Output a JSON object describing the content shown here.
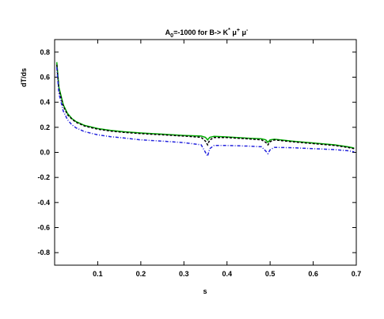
{
  "chart_data": {
    "type": "line",
    "title": {
      "A": "A",
      "A_sub": "0",
      "mid": "=-1000 for  B-> K",
      "K_sup": "*",
      "mu": " μ",
      "mu1_sup": "+",
      "mu2": " μ",
      "mu2_sup": "-"
    },
    "xlabel": "s",
    "ylabel": "dT/ds",
    "xlim": [
      0.0,
      0.7
    ],
    "ylim": [
      -0.9,
      0.9
    ],
    "grid": false,
    "x_ticks": [
      0.1,
      0.2,
      0.3,
      0.4,
      0.5,
      0.6,
      0.7
    ],
    "x_tick_labels": [
      "0.1",
      "0.2",
      "0.3",
      "0.4",
      "0.5",
      "0.6",
      "0.7"
    ],
    "y_ticks": [
      -0.8,
      -0.6,
      -0.4,
      -0.2,
      0.0,
      0.2,
      0.4,
      0.6,
      0.8
    ],
    "y_tick_labels": [
      "-0.8",
      "-0.6",
      "-0.4",
      "-0.2",
      "0.0",
      "0.2",
      "0.4",
      "0.6",
      "0.8"
    ],
    "series": [
      {
        "color": "#00aa00",
        "dash": "solid",
        "x": [
          0.005,
          0.01,
          0.02,
          0.03,
          0.04,
          0.05,
          0.07,
          0.1,
          0.13,
          0.16,
          0.2,
          0.25,
          0.3,
          0.34,
          0.35,
          0.355,
          0.36,
          0.37,
          0.4,
          0.45,
          0.48,
          0.49,
          0.495,
          0.5,
          0.51,
          0.55,
          0.6,
          0.65,
          0.68,
          0.695
        ],
        "y": [
          0.72,
          0.52,
          0.38,
          0.31,
          0.27,
          0.245,
          0.215,
          0.19,
          0.175,
          0.165,
          0.155,
          0.145,
          0.135,
          0.13,
          0.12,
          0.1,
          0.12,
          0.128,
          0.123,
          0.113,
          0.108,
          0.1,
          0.08,
          0.1,
          0.105,
          0.09,
          0.075,
          0.06,
          0.045,
          0.035
        ]
      },
      {
        "color": "#000000",
        "dash": "dashed",
        "x": [
          0.005,
          0.01,
          0.02,
          0.03,
          0.04,
          0.05,
          0.07,
          0.1,
          0.13,
          0.16,
          0.2,
          0.25,
          0.3,
          0.34,
          0.35,
          0.355,
          0.36,
          0.37,
          0.4,
          0.45,
          0.48,
          0.49,
          0.495,
          0.5,
          0.51,
          0.55,
          0.6,
          0.65,
          0.68,
          0.695
        ],
        "y": [
          0.7,
          0.5,
          0.37,
          0.3,
          0.265,
          0.24,
          0.21,
          0.185,
          0.17,
          0.16,
          0.15,
          0.14,
          0.13,
          0.12,
          0.09,
          0.06,
          0.1,
          0.118,
          0.118,
          0.108,
          0.1,
          0.08,
          0.06,
          0.085,
          0.1,
          0.085,
          0.07,
          0.055,
          0.04,
          0.03
        ]
      },
      {
        "color": "#2222dd",
        "dash": "dashdot",
        "x": [
          0.005,
          0.01,
          0.02,
          0.03,
          0.04,
          0.05,
          0.07,
          0.1,
          0.13,
          0.16,
          0.2,
          0.25,
          0.3,
          0.34,
          0.35,
          0.355,
          0.36,
          0.37,
          0.4,
          0.45,
          0.48,
          0.49,
          0.495,
          0.5,
          0.51,
          0.55,
          0.6,
          0.65,
          0.68,
          0.695
        ],
        "y": [
          0.68,
          0.47,
          0.33,
          0.26,
          0.22,
          0.195,
          0.165,
          0.14,
          0.125,
          0.115,
          0.1,
          0.09,
          0.078,
          0.06,
          0.0,
          -0.03,
          0.03,
          0.055,
          0.055,
          0.05,
          0.045,
          0.01,
          -0.01,
          0.02,
          0.04,
          0.037,
          0.03,
          0.022,
          0.013,
          0.005
        ]
      }
    ]
  }
}
